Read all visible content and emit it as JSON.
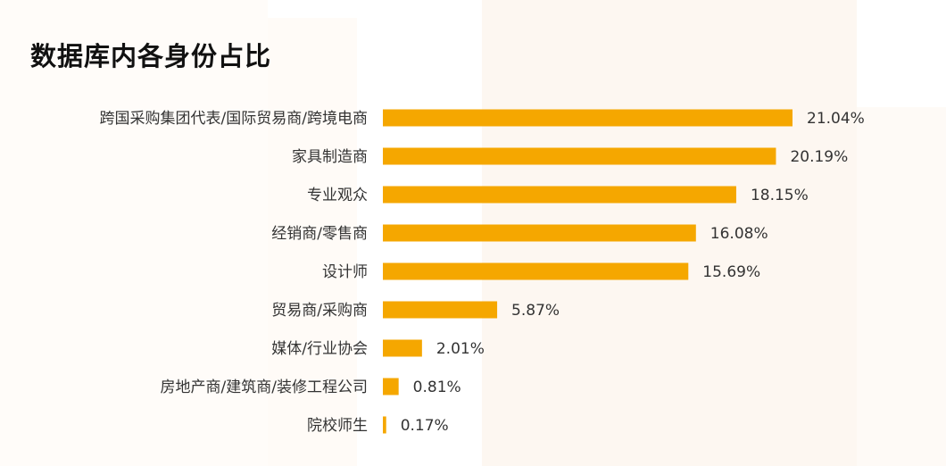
{
  "title": "数据库内各身份占比",
  "colors": {
    "bar": "#F5A700",
    "text": "#333333",
    "title": "#111111",
    "background_tint": "#fdf7f1"
  },
  "chart_data": {
    "type": "bar",
    "orientation": "horizontal",
    "title": "数据库内各身份占比",
    "categories": [
      "跨国采购集团代表/国际贸易商/跨境电商",
      "家具制造商",
      "专业观众",
      "经销商/零售商",
      "设计师",
      "贸易商/采购商",
      "媒体/行业协会",
      "房地产商/建筑商/装修工程公司",
      "院校师生"
    ],
    "values": [
      21.04,
      20.19,
      18.15,
      16.08,
      15.69,
      5.87,
      2.01,
      0.81,
      0.17
    ],
    "value_labels": [
      "21.04%",
      "20.19%",
      "18.15%",
      "16.08%",
      "15.69%",
      "5.87%",
      "2.01%",
      "0.81%",
      "0.17%"
    ],
    "unit": "%",
    "xlabel": "",
    "ylabel": "",
    "grid": false,
    "legend": "none"
  }
}
